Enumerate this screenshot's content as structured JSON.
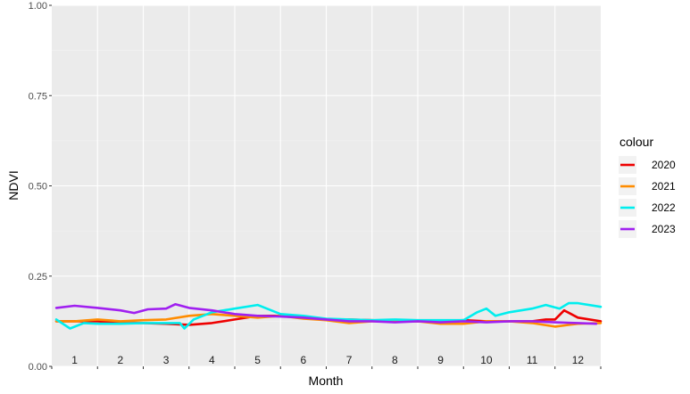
{
  "chart_data": {
    "type": "line",
    "xlabel": "Month",
    "ylabel": "NDVI",
    "ylim": [
      0,
      1
    ],
    "yticks": [
      "0.00",
      "0.25",
      "0.50",
      "0.75",
      "1.00"
    ],
    "ytick_values": [
      0,
      0.25,
      0.5,
      0.75,
      1
    ],
    "xlim": [
      0.5,
      12.5
    ],
    "month_labels": [
      "1",
      "2",
      "3",
      "4",
      "5",
      "6",
      "7",
      "8",
      "9",
      "10",
      "11",
      "12"
    ],
    "grid": true,
    "legend_title": "colour",
    "legend_position": "right",
    "series": [
      {
        "name": "2020",
        "color": "#ee0000",
        "x": [
          0.6,
          1.0,
          1.5,
          2.0,
          2.5,
          3.0,
          3.5,
          4.0,
          4.5,
          5.0,
          5.5,
          6.0,
          6.5,
          7.0,
          7.5,
          8.0,
          8.5,
          9.0,
          9.5,
          10.0,
          10.5,
          11.0,
          11.3,
          11.5,
          11.7,
          12.0,
          12.5
        ],
        "y": [
          0.125,
          0.125,
          0.125,
          0.12,
          0.12,
          0.118,
          0.115,
          0.12,
          0.13,
          0.14,
          0.14,
          0.135,
          0.13,
          0.13,
          0.128,
          0.125,
          0.125,
          0.125,
          0.128,
          0.125,
          0.125,
          0.125,
          0.13,
          0.13,
          0.155,
          0.135,
          0.125
        ]
      },
      {
        "name": "2021",
        "color": "#ff8c00",
        "x": [
          0.6,
          1.0,
          1.5,
          2.0,
          2.5,
          3.0,
          3.5,
          4.0,
          4.5,
          5.0,
          5.5,
          6.0,
          6.5,
          7.0,
          7.5,
          8.0,
          8.5,
          9.0,
          9.5,
          10.0,
          10.5,
          11.0,
          11.5,
          12.0,
          12.5
        ],
        "y": [
          0.125,
          0.125,
          0.13,
          0.125,
          0.128,
          0.13,
          0.14,
          0.145,
          0.14,
          0.135,
          0.14,
          0.132,
          0.128,
          0.12,
          0.125,
          0.125,
          0.125,
          0.118,
          0.118,
          0.125,
          0.125,
          0.12,
          0.11,
          0.118,
          0.12
        ]
      },
      {
        "name": "2022",
        "color": "#00eeee",
        "x": [
          0.6,
          0.9,
          1.2,
          1.5,
          2.0,
          2.5,
          3.0,
          3.3,
          3.4,
          3.6,
          4.0,
          4.5,
          5.0,
          5.5,
          6.0,
          6.5,
          7.0,
          7.5,
          8.0,
          8.5,
          9.0,
          9.5,
          9.8,
          10.0,
          10.2,
          10.5,
          11.0,
          11.3,
          11.6,
          11.8,
          12.0,
          12.5
        ],
        "y": [
          0.13,
          0.105,
          0.12,
          0.118,
          0.118,
          0.12,
          0.12,
          0.12,
          0.105,
          0.13,
          0.15,
          0.16,
          0.17,
          0.145,
          0.14,
          0.132,
          0.13,
          0.128,
          0.13,
          0.128,
          0.128,
          0.128,
          0.15,
          0.16,
          0.14,
          0.15,
          0.16,
          0.17,
          0.16,
          0.175,
          0.175,
          0.165
        ]
      },
      {
        "name": "2023",
        "color": "#a020f0",
        "x": [
          0.6,
          1.0,
          1.5,
          2.0,
          2.3,
          2.6,
          3.0,
          3.2,
          3.5,
          4.0,
          4.5,
          5.0,
          5.5,
          6.0,
          6.5,
          7.0,
          7.5,
          8.0,
          8.5,
          9.0,
          9.5,
          10.0,
          10.5,
          11.0,
          11.5,
          12.0,
          12.4
        ],
        "y": [
          0.162,
          0.168,
          0.162,
          0.155,
          0.148,
          0.158,
          0.16,
          0.172,
          0.162,
          0.155,
          0.145,
          0.14,
          0.138,
          0.135,
          0.13,
          0.125,
          0.125,
          0.122,
          0.125,
          0.122,
          0.125,
          0.122,
          0.125,
          0.125,
          0.122,
          0.12,
          0.118
        ]
      }
    ]
  }
}
